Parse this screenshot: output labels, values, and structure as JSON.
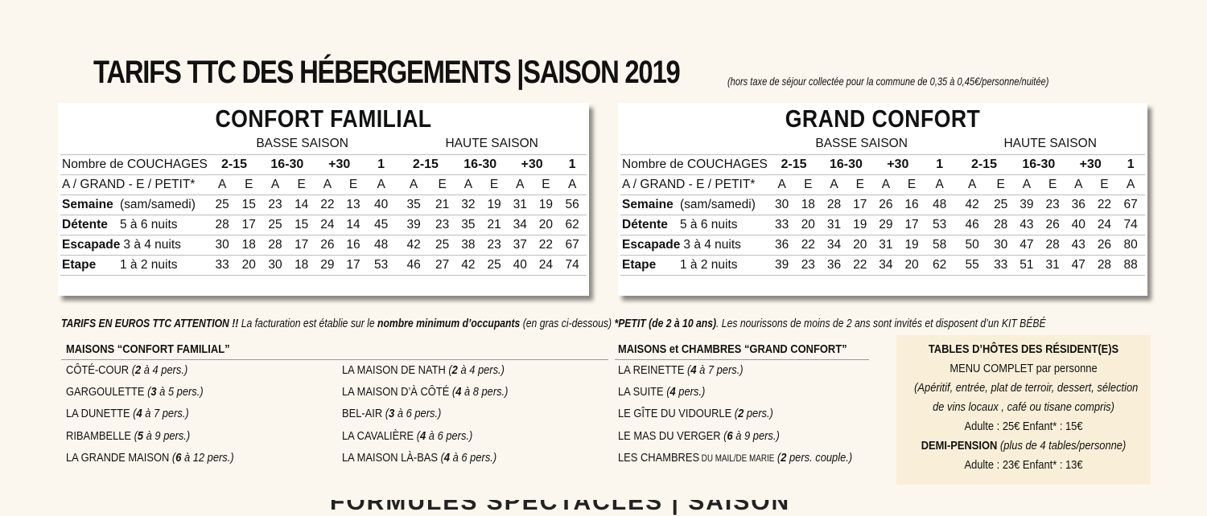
{
  "title": {
    "main": "TARIFS TTC DES HÉBERGEMENTS |SAISON 2019",
    "note": "(hors taxe de séjour collectée pour la commune de 0,35 à 0,45€/personne/nuitée)"
  },
  "panels": [
    {
      "heading": "CONFORT FAMILIAL",
      "basse": "BASSE SAISON",
      "haute": "HAUTE SAISON",
      "couchages_label": "Nombre de COUCHAGES",
      "groups": [
        "2-15",
        "16-30",
        "+30",
        "1",
        "2-15",
        "16-30",
        "+30",
        "1"
      ],
      "age_label": "A / GRAND - E / PETIT*",
      "ages": [
        "A",
        "E",
        "A",
        "E",
        "A",
        "E",
        "A",
        "A",
        "E",
        "A",
        "E",
        "A",
        "E",
        "A"
      ],
      "rows": [
        {
          "name": "Semaine",
          "sub": "(sam/samedi)",
          "vals": [
            "25",
            "15",
            "23",
            "14",
            "22",
            "13",
            "40",
            "35",
            "21",
            "32",
            "19",
            "31",
            "19",
            "56"
          ]
        },
        {
          "name": "Détente",
          "sub": "5 à 6 nuits",
          "vals": [
            "28",
            "17",
            "25",
            "15",
            "24",
            "14",
            "45",
            "39",
            "23",
            "35",
            "21",
            "34",
            "20",
            "62"
          ]
        },
        {
          "name": "Escapade",
          "sub": "3 à 4 nuits",
          "vals": [
            "30",
            "18",
            "28",
            "17",
            "26",
            "16",
            "48",
            "42",
            "25",
            "38",
            "23",
            "37",
            "22",
            "67"
          ]
        },
        {
          "name": "Etape",
          "sub": "1 à 2 nuits",
          "vals": [
            "33",
            "20",
            "30",
            "18",
            "29",
            "17",
            "53",
            "46",
            "27",
            "42",
            "25",
            "40",
            "24",
            "74"
          ]
        }
      ]
    },
    {
      "heading": "GRAND CONFORT",
      "basse": "BASSE SAISON",
      "haute": "HAUTE SAISON",
      "couchages_label": "Nombre de COUCHAGES",
      "groups": [
        "2-15",
        "16-30",
        "+30",
        "1",
        "2-15",
        "16-30",
        "+30",
        "1"
      ],
      "age_label": "A / GRAND - E / PETIT*",
      "ages": [
        "A",
        "E",
        "A",
        "E",
        "A",
        "E",
        "A",
        "A",
        "E",
        "A",
        "E",
        "A",
        "E",
        "A"
      ],
      "rows": [
        {
          "name": "Semaine",
          "sub": "(sam/samedi)",
          "vals": [
            "30",
            "18",
            "28",
            "17",
            "26",
            "16",
            "48",
            "42",
            "25",
            "39",
            "23",
            "36",
            "22",
            "67"
          ]
        },
        {
          "name": "Détente",
          "sub": "5 à 6 nuits",
          "vals": [
            "33",
            "20",
            "31",
            "19",
            "29",
            "17",
            "53",
            "46",
            "28",
            "43",
            "26",
            "40",
            "24",
            "74"
          ]
        },
        {
          "name": "Escapade",
          "sub": "3 à 4 nuits",
          "vals": [
            "36",
            "22",
            "34",
            "20",
            "31",
            "19",
            "58",
            "50",
            "30",
            "47",
            "28",
            "43",
            "26",
            "80"
          ]
        },
        {
          "name": "Etape",
          "sub": "1 à 2 nuits",
          "vals": [
            "39",
            "23",
            "36",
            "22",
            "34",
            "20",
            "62",
            "55",
            "33",
            "51",
            "31",
            "47",
            "28",
            "88"
          ]
        }
      ]
    }
  ],
  "footnote": {
    "a": "TARIFS EN EUROS TTC ATTENTION !!",
    "b": " La facturation est établie sur le ",
    "c": "nombre minimum d’occupants",
    "d": " (en gras ci-dessous) ",
    "e": "*PETIT (de 2 à 10 ans)",
    "f": ". Les nourissons de moins de 2 ans sont invités et disposent d’un KIT BÉBÉ"
  },
  "familial": {
    "heading": "MAISONS “CONFORT FAMILIAL”",
    "col1": [
      {
        "name": "CÔTÉ-COUR",
        "n": "2",
        "r": " à 4 pers.)"
      },
      {
        "name": "GARGOULETTE",
        "n": "3",
        "r": " à 5 pers.)"
      },
      {
        "name": "LA DUNETTE",
        "n": "4",
        "r": " à 7 pers.)"
      },
      {
        "name": "RIBAMBELLE",
        "n": "5",
        "r": " à 9 pers.)"
      },
      {
        "name": "LA GRANDE MAISON",
        "n": "6",
        "r": " à 12 pers.)"
      }
    ],
    "col2": [
      {
        "name": "LA MAISON DE NATH",
        "n": "2",
        "r": " à 4 pers.)"
      },
      {
        "name": "LA MAISON D’À CÔTÉ",
        "n": "4",
        "r": " à 8 pers.)"
      },
      {
        "name": "BEL-AIR",
        "n": "3",
        "r": " à 6 pers.)"
      },
      {
        "name": "LA CAVALIÈRE",
        "n": "4",
        "r": " à 6 pers.)"
      },
      {
        "name": "LA MAISON LÀ-BAS",
        "n": "4",
        "r": " à 6 pers.)"
      }
    ]
  },
  "grand": {
    "heading": "MAISONS et CHAMBRES “GRAND CONFORT”",
    "items": [
      {
        "name": "LA REINETTE",
        "n": "4",
        "r": " à 7 pers.)"
      },
      {
        "name": "LA SUITE",
        "n": "4",
        "r": " pers.)"
      },
      {
        "name": "LE GÎTE DU VIDOURLE",
        "n": "2",
        "r": " pers.)"
      },
      {
        "name": "LE MAS DU VERGER",
        "n": "6",
        "r": " à 9 pers.)"
      },
      {
        "name": "LES CHAMBRES",
        "small": "DU MAIL/DE MARIE",
        "n": "2",
        "r": " pers. couple.)"
      }
    ]
  },
  "tables": {
    "heading": "TABLES D’HÔTES DES RÉSIDENT(E)S",
    "menu_a": "MENU COMPLET",
    "menu_b": " par personne",
    "desc1": "(Apéritif, entrée, plat de terroir, dessert, sélection",
    "desc2": "de vins locaux , café ou tisane compris)",
    "price1": "Adulte : 25€ Enfant* : 15€",
    "demi_a": "DEMI-PENSION",
    "demi_b": " (plus de 4 tables/personne)",
    "price2": "Adulte : 23€ Enfant* : 13€"
  },
  "bottom_text": "FORMULES SPECTACLES | SAISON"
}
